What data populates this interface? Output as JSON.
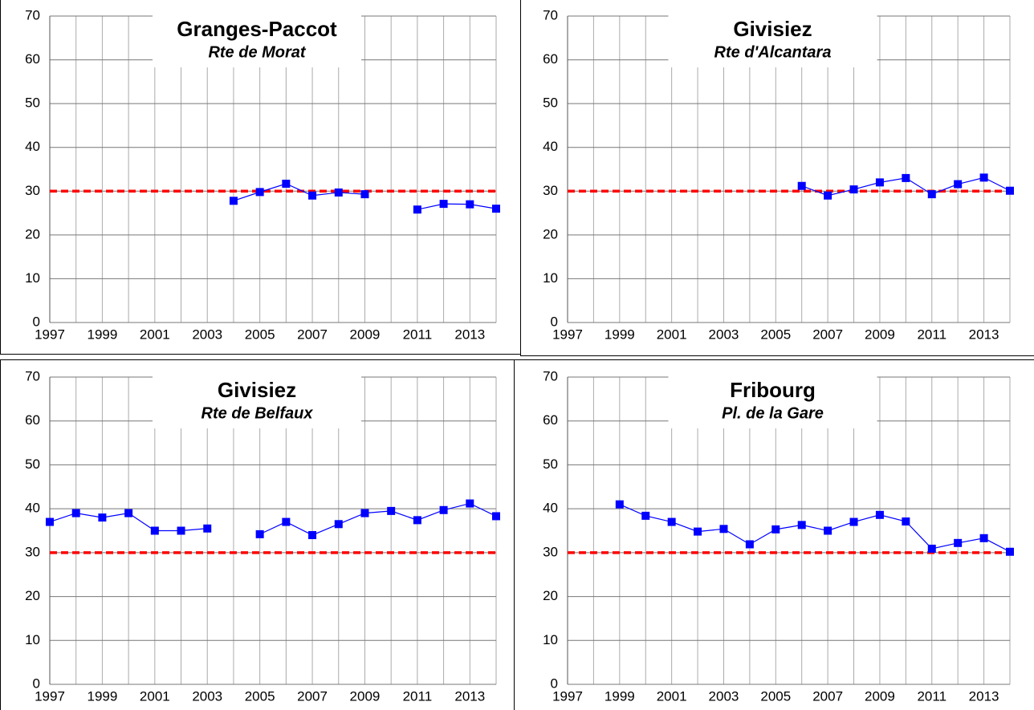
{
  "chart_data": [
    {
      "type": "line",
      "title": "Granges-Paccot",
      "subtitle": "Rte de Morat",
      "x": [
        1997,
        1998,
        1999,
        2000,
        2001,
        2002,
        2003,
        2004,
        2005,
        2006,
        2007,
        2008,
        2009,
        2010,
        2011,
        2012,
        2013,
        2014
      ],
      "series": [
        {
          "color": "#0000ff",
          "values": [
            null,
            null,
            null,
            null,
            null,
            null,
            null,
            27.8,
            29.8,
            31.7,
            29,
            29.7,
            29.3,
            null,
            25.8,
            27.1,
            27,
            26
          ]
        }
      ],
      "limit_line": {
        "value": 30,
        "color": "#ff0000"
      },
      "xlim": [
        1997,
        2014
      ],
      "xticks": [
        1997,
        1999,
        2001,
        2003,
        2005,
        2007,
        2009,
        2011,
        2013
      ],
      "x_minor_ticks": [
        1998,
        2000,
        2002,
        2004,
        2006,
        2008,
        2010,
        2012,
        2014
      ],
      "ylim": [
        0,
        70
      ],
      "yticks": [
        0,
        10,
        20,
        30,
        40,
        50,
        60,
        70
      ],
      "grid": true
    },
    {
      "type": "line",
      "title": "Givisiez",
      "subtitle": "Rte d'Alcantara",
      "x": [
        1997,
        1998,
        1999,
        2000,
        2001,
        2002,
        2003,
        2004,
        2005,
        2006,
        2007,
        2008,
        2009,
        2010,
        2011,
        2012,
        2013,
        2014
      ],
      "series": [
        {
          "color": "#0000ff",
          "values": [
            null,
            null,
            null,
            null,
            null,
            null,
            null,
            null,
            null,
            31.2,
            29,
            30.4,
            32,
            33,
            29.3,
            31.6,
            33.1,
            30.1
          ]
        }
      ],
      "limit_line": {
        "value": 30,
        "color": "#ff0000"
      },
      "xlim": [
        1997,
        2014
      ],
      "xticks": [
        1997,
        1999,
        2001,
        2003,
        2005,
        2007,
        2009,
        2011,
        2013
      ],
      "x_minor_ticks": [
        1998,
        2000,
        2002,
        2004,
        2006,
        2008,
        2010,
        2012,
        2014
      ],
      "ylim": [
        0,
        70
      ],
      "yticks": [
        0,
        10,
        20,
        30,
        40,
        50,
        60,
        70
      ],
      "grid": true
    },
    {
      "type": "line",
      "title": "Givisiez",
      "subtitle": "Rte de Belfaux",
      "x": [
        1997,
        1998,
        1999,
        2000,
        2001,
        2002,
        2003,
        2004,
        2005,
        2006,
        2007,
        2008,
        2009,
        2010,
        2011,
        2012,
        2013,
        2014
      ],
      "series": [
        {
          "color": "#0000ff",
          "values": [
            37,
            39,
            38,
            39,
            35,
            35,
            35.5,
            null,
            34.2,
            37,
            34,
            36.5,
            39,
            39.5,
            37.4,
            39.7,
            41.2,
            38.3
          ]
        }
      ],
      "limit_line": {
        "value": 30,
        "color": "#ff0000"
      },
      "xlim": [
        1997,
        2014
      ],
      "xticks": [
        1997,
        1999,
        2001,
        2003,
        2005,
        2007,
        2009,
        2011,
        2013
      ],
      "x_minor_ticks": [
        1998,
        2000,
        2002,
        2004,
        2006,
        2008,
        2010,
        2012,
        2014
      ],
      "ylim": [
        0,
        70
      ],
      "yticks": [
        0,
        10,
        20,
        30,
        40,
        50,
        60,
        70
      ],
      "grid": true
    },
    {
      "type": "line",
      "title": "Fribourg",
      "subtitle": "Pl. de la Gare",
      "x": [
        1997,
        1998,
        1999,
        2000,
        2001,
        2002,
        2003,
        2004,
        2005,
        2006,
        2007,
        2008,
        2009,
        2010,
        2011,
        2012,
        2013,
        2014
      ],
      "series": [
        {
          "color": "#0000ff",
          "values": [
            null,
            null,
            41,
            38.4,
            37,
            34.8,
            35.4,
            31.9,
            35.3,
            36.3,
            35,
            37,
            38.6,
            37.1,
            30.9,
            32.2,
            33.3,
            30.2
          ]
        }
      ],
      "limit_line": {
        "value": 30,
        "color": "#ff0000"
      },
      "xlim": [
        1997,
        2014
      ],
      "xticks": [
        1997,
        1999,
        2001,
        2003,
        2005,
        2007,
        2009,
        2011,
        2013
      ],
      "x_minor_ticks": [
        1998,
        2000,
        2002,
        2004,
        2006,
        2008,
        2010,
        2012,
        2014
      ],
      "ylim": [
        0,
        70
      ],
      "yticks": [
        0,
        10,
        20,
        30,
        40,
        50,
        60,
        70
      ],
      "grid": true
    }
  ]
}
